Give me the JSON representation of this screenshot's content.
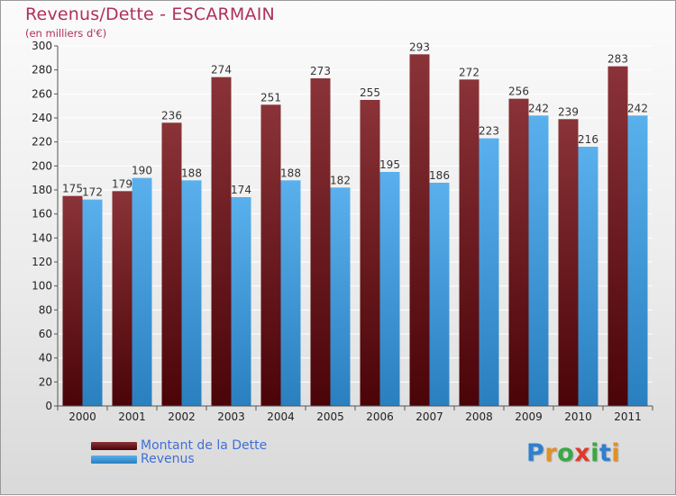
{
  "title": "Revenus/Dette - ESCARMAIN",
  "subtitle": "(en milliers d'€)",
  "legend": {
    "debt_label": "Montant de la Dette",
    "revenue_label": "Revenus"
  },
  "logo": {
    "letters": [
      "P",
      "r",
      "o",
      "x",
      "i",
      "t",
      "i"
    ],
    "colors": [
      "#2f7fd0",
      "#e0902a",
      "#3aa845",
      "#e03a2a",
      "#3aa845",
      "#2f7fd0",
      "#e0902a"
    ]
  },
  "colors": {
    "debt": "#7a1c22",
    "revenue": "#4aa3e3",
    "title": "#b0305a",
    "legend_text": "#3f6fd6"
  },
  "chart_data": {
    "type": "bar",
    "categories": [
      "2000",
      "2001",
      "2002",
      "2003",
      "2004",
      "2005",
      "2006",
      "2007",
      "2008",
      "2009",
      "2010",
      "2011"
    ],
    "series": [
      {
        "name": "Montant de la Dette",
        "values": [
          175,
          179,
          236,
          274,
          251,
          273,
          255,
          293,
          272,
          256,
          239,
          283
        ]
      },
      {
        "name": "Revenus",
        "values": [
          172,
          190,
          188,
          174,
          188,
          182,
          195,
          186,
          223,
          242,
          216,
          242
        ]
      }
    ],
    "ylim": [
      0,
      300
    ],
    "ytick_step": 20,
    "grid": true
  }
}
